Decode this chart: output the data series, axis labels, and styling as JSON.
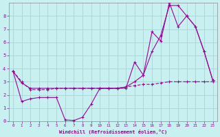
{
  "xlabel": "Windchill (Refroidissement éolien,°C)",
  "bg_color": "#c8f0f0",
  "grid_color": "#aad4d4",
  "line_color": "#990099",
  "x_range": [
    -0.5,
    23.5
  ],
  "y_range": [
    0,
    9
  ],
  "curve1_x": [
    0,
    1,
    2,
    3,
    4,
    5,
    6,
    7,
    8,
    9,
    10,
    11,
    12,
    13,
    14,
    15,
    16,
    17,
    18,
    19,
    20,
    21,
    22,
    23
  ],
  "curve1_y": [
    3.8,
    1.5,
    1.7,
    1.8,
    1.8,
    1.8,
    0.1,
    0.05,
    0.3,
    1.3,
    2.5,
    2.5,
    2.5,
    2.5,
    4.5,
    3.5,
    6.8,
    6.1,
    9.0,
    7.2,
    8.0,
    7.2,
    5.3,
    3.1
  ],
  "curve2_x": [
    0,
    1,
    2,
    3,
    4,
    5,
    6,
    7,
    8,
    9,
    10,
    11,
    12,
    13,
    14,
    15,
    16,
    17,
    18,
    19,
    20,
    21,
    22,
    23
  ],
  "curve2_y": [
    3.8,
    2.9,
    2.5,
    2.5,
    2.5,
    2.5,
    2.5,
    2.5,
    2.5,
    2.5,
    2.5,
    2.5,
    2.5,
    2.6,
    3.0,
    3.5,
    5.3,
    6.5,
    8.8,
    8.8,
    8.0,
    7.2,
    5.3,
    3.1
  ],
  "curve3_x": [
    0,
    1,
    2,
    3,
    4,
    5,
    6,
    7,
    8,
    9,
    10,
    11,
    12,
    13,
    14,
    15,
    16,
    17,
    18,
    19,
    20,
    21,
    22,
    23
  ],
  "curve3_y": [
    3.8,
    3.0,
    2.4,
    2.4,
    2.4,
    2.5,
    2.5,
    2.5,
    2.5,
    2.5,
    2.5,
    2.5,
    2.5,
    2.6,
    2.7,
    2.8,
    2.8,
    2.9,
    3.0,
    3.0,
    3.0,
    3.0,
    3.0,
    3.0
  ]
}
